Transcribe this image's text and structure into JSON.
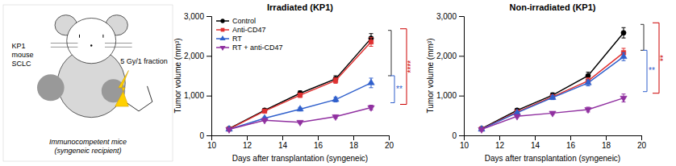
{
  "chart_data": [
    {
      "type": "illustration",
      "annotations": [
        "KP1\nmouse\nSCLC",
        "5 Gy/1 fraction",
        "Immunocompetent mice\n(syngeneic recipient)"
      ]
    },
    {
      "type": "line",
      "title": "Irradiated (KP1)",
      "xlabel": "Days after transplantation (syngeneic)",
      "ylabel": "Tumor volume (mm³)",
      "x": [
        11,
        13,
        15,
        17,
        19
      ],
      "xlim": [
        10,
        20
      ],
      "xticks": [
        10,
        12,
        14,
        16,
        18,
        20
      ],
      "ylim": [
        0,
        3000
      ],
      "yticks": [
        0,
        {
          "value": 1000,
          "label": "1,000"
        },
        {
          "value": 2000,
          "label": "2,000"
        },
        {
          "value": 3000,
          "label": "3,000"
        }
      ],
      "legend": "upper left",
      "series": [
        {
          "name": "Control",
          "color": "#000000",
          "marker": "circle",
          "values": [
            170,
            630,
            1060,
            1420,
            2440
          ],
          "errors": [
            20,
            40,
            60,
            80,
            120
          ]
        },
        {
          "name": "Anti-CD47",
          "color": "#e03030",
          "marker": "square",
          "values": [
            160,
            610,
            1010,
            1380,
            2350
          ],
          "errors": [
            20,
            40,
            55,
            70,
            110
          ]
        },
        {
          "name": "RT",
          "color": "#3060cc",
          "marker": "triangle-up",
          "values": [
            155,
            430,
            660,
            900,
            1320
          ],
          "errors": [
            15,
            30,
            45,
            60,
            120
          ]
        },
        {
          "name": "RT + anti-CD47",
          "color": "#9030a0",
          "marker": "triangle-down",
          "values": [
            150,
            380,
            330,
            470,
            700
          ],
          "errors": [
            15,
            25,
            30,
            40,
            60
          ]
        }
      ],
      "annotations": [
        {
          "text": "****",
          "color": "#cc0000"
        },
        {
          "text": "**",
          "color": "#3060cc"
        }
      ]
    },
    {
      "type": "line",
      "title": "Non-irradiated (KP1)",
      "xlabel": "Days after transplantation (syngeneic)",
      "ylabel": "Tumor volume (mm³)",
      "x": [
        11,
        13,
        15,
        17,
        19
      ],
      "xlim": [
        10,
        20
      ],
      "xticks": [
        10,
        12,
        14,
        16,
        18,
        20
      ],
      "ylim": [
        0,
        3000
      ],
      "yticks": [
        0,
        {
          "value": 1000,
          "label": "1,000"
        },
        {
          "value": 2000,
          "label": "2,000"
        },
        {
          "value": 3000,
          "label": "3,000"
        }
      ],
      "series": [
        {
          "name": "Control",
          "color": "#000000",
          "marker": "circle",
          "values": [
            170,
            630,
            1010,
            1500,
            2580
          ],
          "errors": [
            20,
            40,
            60,
            90,
            130
          ]
        },
        {
          "name": "Anti-CD47",
          "color": "#e03030",
          "marker": "square",
          "values": [
            160,
            590,
            970,
            1370,
            2080
          ],
          "errors": [
            20,
            35,
            55,
            80,
            110
          ]
        },
        {
          "name": "RT",
          "color": "#3060cc",
          "marker": "triangle-up",
          "values": [
            155,
            570,
            950,
            1320,
            1980
          ],
          "errors": [
            15,
            30,
            50,
            75,
            100
          ]
        },
        {
          "name": "RT + anti-CD47",
          "color": "#9030a0",
          "marker": "triangle-down",
          "values": [
            150,
            480,
            560,
            650,
            940
          ],
          "errors": [
            15,
            30,
            35,
            60,
            100
          ]
        }
      ],
      "annotations": [
        {
          "text": "**",
          "color": "#cc0000"
        },
        {
          "text": "**",
          "color": "#3060cc"
        }
      ]
    }
  ]
}
